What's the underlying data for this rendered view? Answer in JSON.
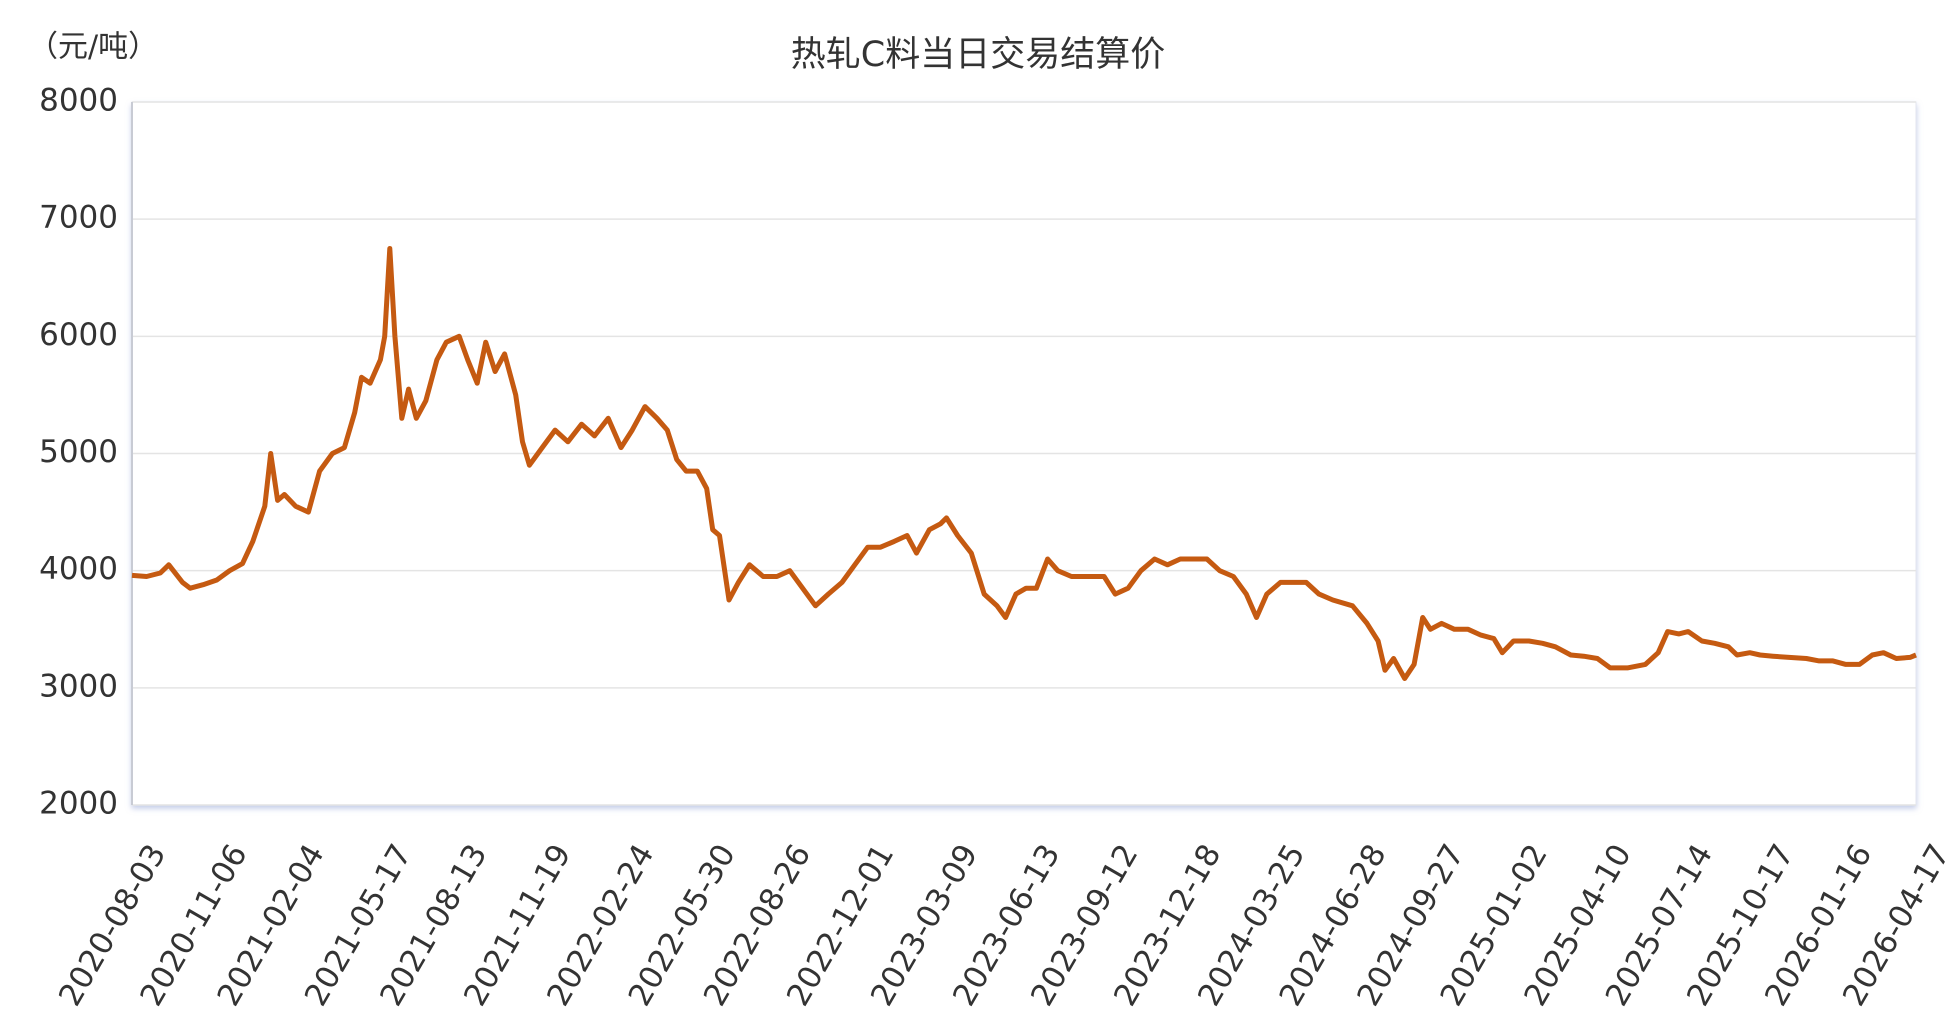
{
  "chart_data": {
    "type": "line",
    "title": "热轧C料当日交易结算价",
    "y_axis_label": "（元/吨）",
    "x": [
      "2020-08-03",
      "2020-08-20",
      "2020-09-05",
      "2020-09-15",
      "2020-10-01",
      "2020-10-10",
      "2020-10-25",
      "2020-11-10",
      "2020-11-25",
      "2020-12-10",
      "2020-12-22",
      "2021-01-05",
      "2021-01-12",
      "2021-01-20",
      "2021-01-28",
      "2021-02-10",
      "2021-02-25",
      "2021-03-10",
      "2021-03-25",
      "2021-04-08",
      "2021-04-20",
      "2021-04-28",
      "2021-05-08",
      "2021-05-20",
      "2021-05-25",
      "2021-05-31",
      "2021-06-06",
      "2021-06-14",
      "2021-06-22",
      "2021-07-01",
      "2021-07-12",
      "2021-07-25",
      "2021-08-05",
      "2021-08-20",
      "2021-08-30",
      "2021-09-10",
      "2021-09-20",
      "2021-10-01",
      "2021-10-12",
      "2021-10-25",
      "2021-11-02",
      "2021-11-10",
      "2021-11-25",
      "2021-12-10",
      "2021-12-25",
      "2022-01-10",
      "2022-01-25",
      "2022-02-10",
      "2022-02-25",
      "2022-03-10",
      "2022-03-25",
      "2022-04-08",
      "2022-04-20",
      "2022-05-01",
      "2022-05-12",
      "2022-05-25",
      "2022-06-05",
      "2022-06-12",
      "2022-06-20",
      "2022-07-01",
      "2022-07-12",
      "2022-07-25",
      "2022-08-10",
      "2022-08-26",
      "2022-09-10",
      "2022-09-25",
      "2022-10-10",
      "2022-10-25",
      "2022-11-10",
      "2022-11-25",
      "2022-12-10",
      "2022-12-25",
      "2023-01-10",
      "2023-01-25",
      "2023-02-05",
      "2023-02-20",
      "2023-03-05",
      "2023-03-12",
      "2023-03-25",
      "2023-04-10",
      "2023-04-25",
      "2023-05-10",
      "2023-05-20",
      "2023-06-01",
      "2023-06-13",
      "2023-06-25",
      "2023-07-08",
      "2023-07-20",
      "2023-08-05",
      "2023-08-25",
      "2023-09-12",
      "2023-09-25",
      "2023-10-10",
      "2023-10-25",
      "2023-11-10",
      "2023-11-25",
      "2023-12-10",
      "2023-12-25",
      "2024-01-10",
      "2024-01-25",
      "2024-02-10",
      "2024-02-25",
      "2024-03-08",
      "2024-03-20",
      "2024-04-05",
      "2024-04-20",
      "2024-05-05",
      "2024-05-20",
      "2024-06-05",
      "2024-06-28",
      "2024-07-15",
      "2024-07-28",
      "2024-08-05",
      "2024-08-15",
      "2024-08-28",
      "2024-09-08",
      "2024-09-18",
      "2024-09-27",
      "2024-10-10",
      "2024-10-25",
      "2024-11-10",
      "2024-11-25",
      "2024-12-10",
      "2024-12-20",
      "2025-01-02",
      "2025-01-20",
      "2025-02-05",
      "2025-02-20",
      "2025-03-10",
      "2025-03-25",
      "2025-04-10",
      "2025-04-25",
      "2025-05-15",
      "2025-06-05",
      "2025-06-20",
      "2025-07-01",
      "2025-07-14",
      "2025-07-25",
      "2025-08-10",
      "2025-08-25",
      "2025-09-10",
      "2025-09-20",
      "2025-10-05",
      "2025-10-17",
      "2025-11-01",
      "2025-11-20",
      "2025-12-10",
      "2025-12-25",
      "2026-01-10",
      "2026-01-25",
      "2026-02-10",
      "2026-02-25",
      "2026-03-10",
      "2026-03-25",
      "2026-04-10",
      "2026-04-17"
    ],
    "series": [
      {
        "name": "热轧C料当日交易结算价",
        "color": "#c55a11",
        "values": [
          3960,
          3950,
          3980,
          4050,
          3900,
          3850,
          3880,
          3920,
          4000,
          4060,
          4250,
          4550,
          5000,
          4600,
          4650,
          4550,
          4500,
          4850,
          5000,
          5050,
          5350,
          5650,
          5600,
          5800,
          6000,
          6750,
          6000,
          5300,
          5550,
          5300,
          5450,
          5800,
          5950,
          6000,
          5800,
          5600,
          5950,
          5700,
          5850,
          5500,
          5100,
          4900,
          5050,
          5200,
          5100,
          5250,
          5150,
          5300,
          5050,
          5200,
          5400,
          5300,
          5200,
          4950,
          4850,
          4850,
          4700,
          4350,
          4300,
          3750,
          3900,
          4050,
          3950,
          3950,
          4000,
          3850,
          3700,
          3800,
          3900,
          4050,
          4200,
          4200,
          4250,
          4300,
          4150,
          4350,
          4400,
          4450,
          4300,
          4150,
          3800,
          3700,
          3600,
          3800,
          3850,
          3850,
          4100,
          4000,
          3950,
          3950,
          3950,
          3800,
          3850,
          4000,
          4100,
          4050,
          4100,
          4100,
          4100,
          4000,
          3950,
          3800,
          3600,
          3800,
          3900,
          3900,
          3900,
          3800,
          3750,
          3700,
          3550,
          3400,
          3150,
          3250,
          3080,
          3200,
          3600,
          3500,
          3550,
          3500,
          3500,
          3450,
          3420,
          3300,
          3400,
          3400,
          3380,
          3350,
          3280,
          3270,
          3250,
          3170,
          3170,
          3200,
          3300,
          3480,
          3460,
          3480,
          3400,
          3380,
          3350,
          3280,
          3300,
          3280,
          3270,
          3260,
          3250,
          3230,
          3230,
          3200,
          3200,
          3280,
          3300,
          3250,
          3260,
          3280
        ]
      }
    ],
    "xlim": [
      "2020-08-03",
      "2026-04-17"
    ],
    "xticks": [
      "2020-08-03",
      "2020-11-06",
      "2021-02-04",
      "2021-05-17",
      "2021-08-13",
      "2021-11-19",
      "2022-02-24",
      "2022-05-30",
      "2022-08-26",
      "2022-12-01",
      "2023-03-09",
      "2023-06-13",
      "2023-09-12",
      "2023-12-18",
      "2024-03-25",
      "2024-06-28",
      "2024-09-27",
      "2025-01-02",
      "2025-04-10",
      "2025-07-14",
      "2025-10-17",
      "2026-01-16",
      "2026-04-17"
    ],
    "ylim": [
      2000,
      8000
    ],
    "yticks": [
      2000,
      3000,
      4000,
      5000,
      6000,
      7000,
      8000
    ],
    "grid": true
  }
}
